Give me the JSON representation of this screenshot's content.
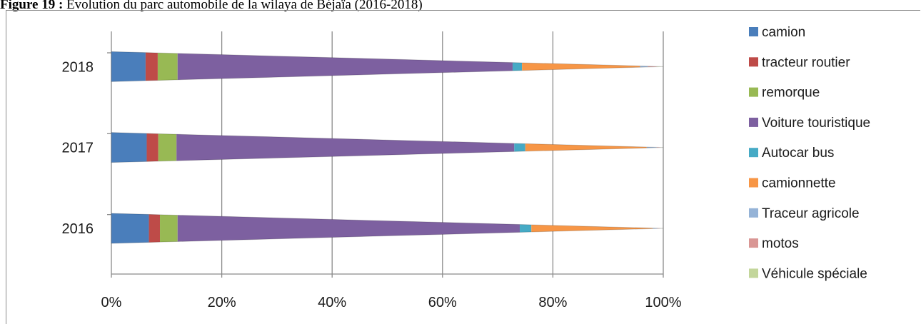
{
  "caption": {
    "figure_label": "Figure 19 :",
    "text": "Evolution du parc automobile de la wilaya de Béjaïa (2016-2018)"
  },
  "chart_data": {
    "type": "bar",
    "orientation": "horizontal",
    "stacked": "100%",
    "categories": [
      "2016",
      "2017",
      "2018"
    ],
    "series": [
      {
        "name": "camion",
        "color": "#4a7ebb",
        "values": [
          6.8,
          6.4,
          6.2
        ]
      },
      {
        "name": "tracteur routier",
        "color": "#be4b48",
        "values": [
          2.0,
          2.1,
          2.2
        ]
      },
      {
        "name": "remorque",
        "color": "#98b954",
        "values": [
          3.2,
          3.3,
          3.6
        ]
      },
      {
        "name": "Voiture touristique",
        "color": "#7d60a0",
        "values": [
          62.0,
          61.2,
          60.7
        ]
      },
      {
        "name": "Autocar bus",
        "color": "#46aac5",
        "values": [
          2.1,
          2.0,
          1.7
        ]
      },
      {
        "name": "camionnette",
        "color": "#f79646",
        "values": [
          22.0,
          22.0,
          21.4
        ]
      },
      {
        "name": "Traceur agricole",
        "color": "#95b3d7",
        "values": [
          0.8,
          1.8,
          1.4
        ]
      },
      {
        "name": "motos",
        "color": "#d99694",
        "values": [
          0.5,
          0.6,
          1.6
        ]
      },
      {
        "name": "Véhicule spéciale",
        "color": "#c3d69b",
        "values": [
          0.6,
          0.6,
          1.2
        ]
      }
    ],
    "xlim": [
      0,
      100
    ],
    "x_ticks": [
      "0%",
      "20%",
      "40%",
      "60%",
      "80%",
      "100%"
    ],
    "grid": "vertical",
    "legend_position": "right",
    "mark_shape": "cone"
  }
}
